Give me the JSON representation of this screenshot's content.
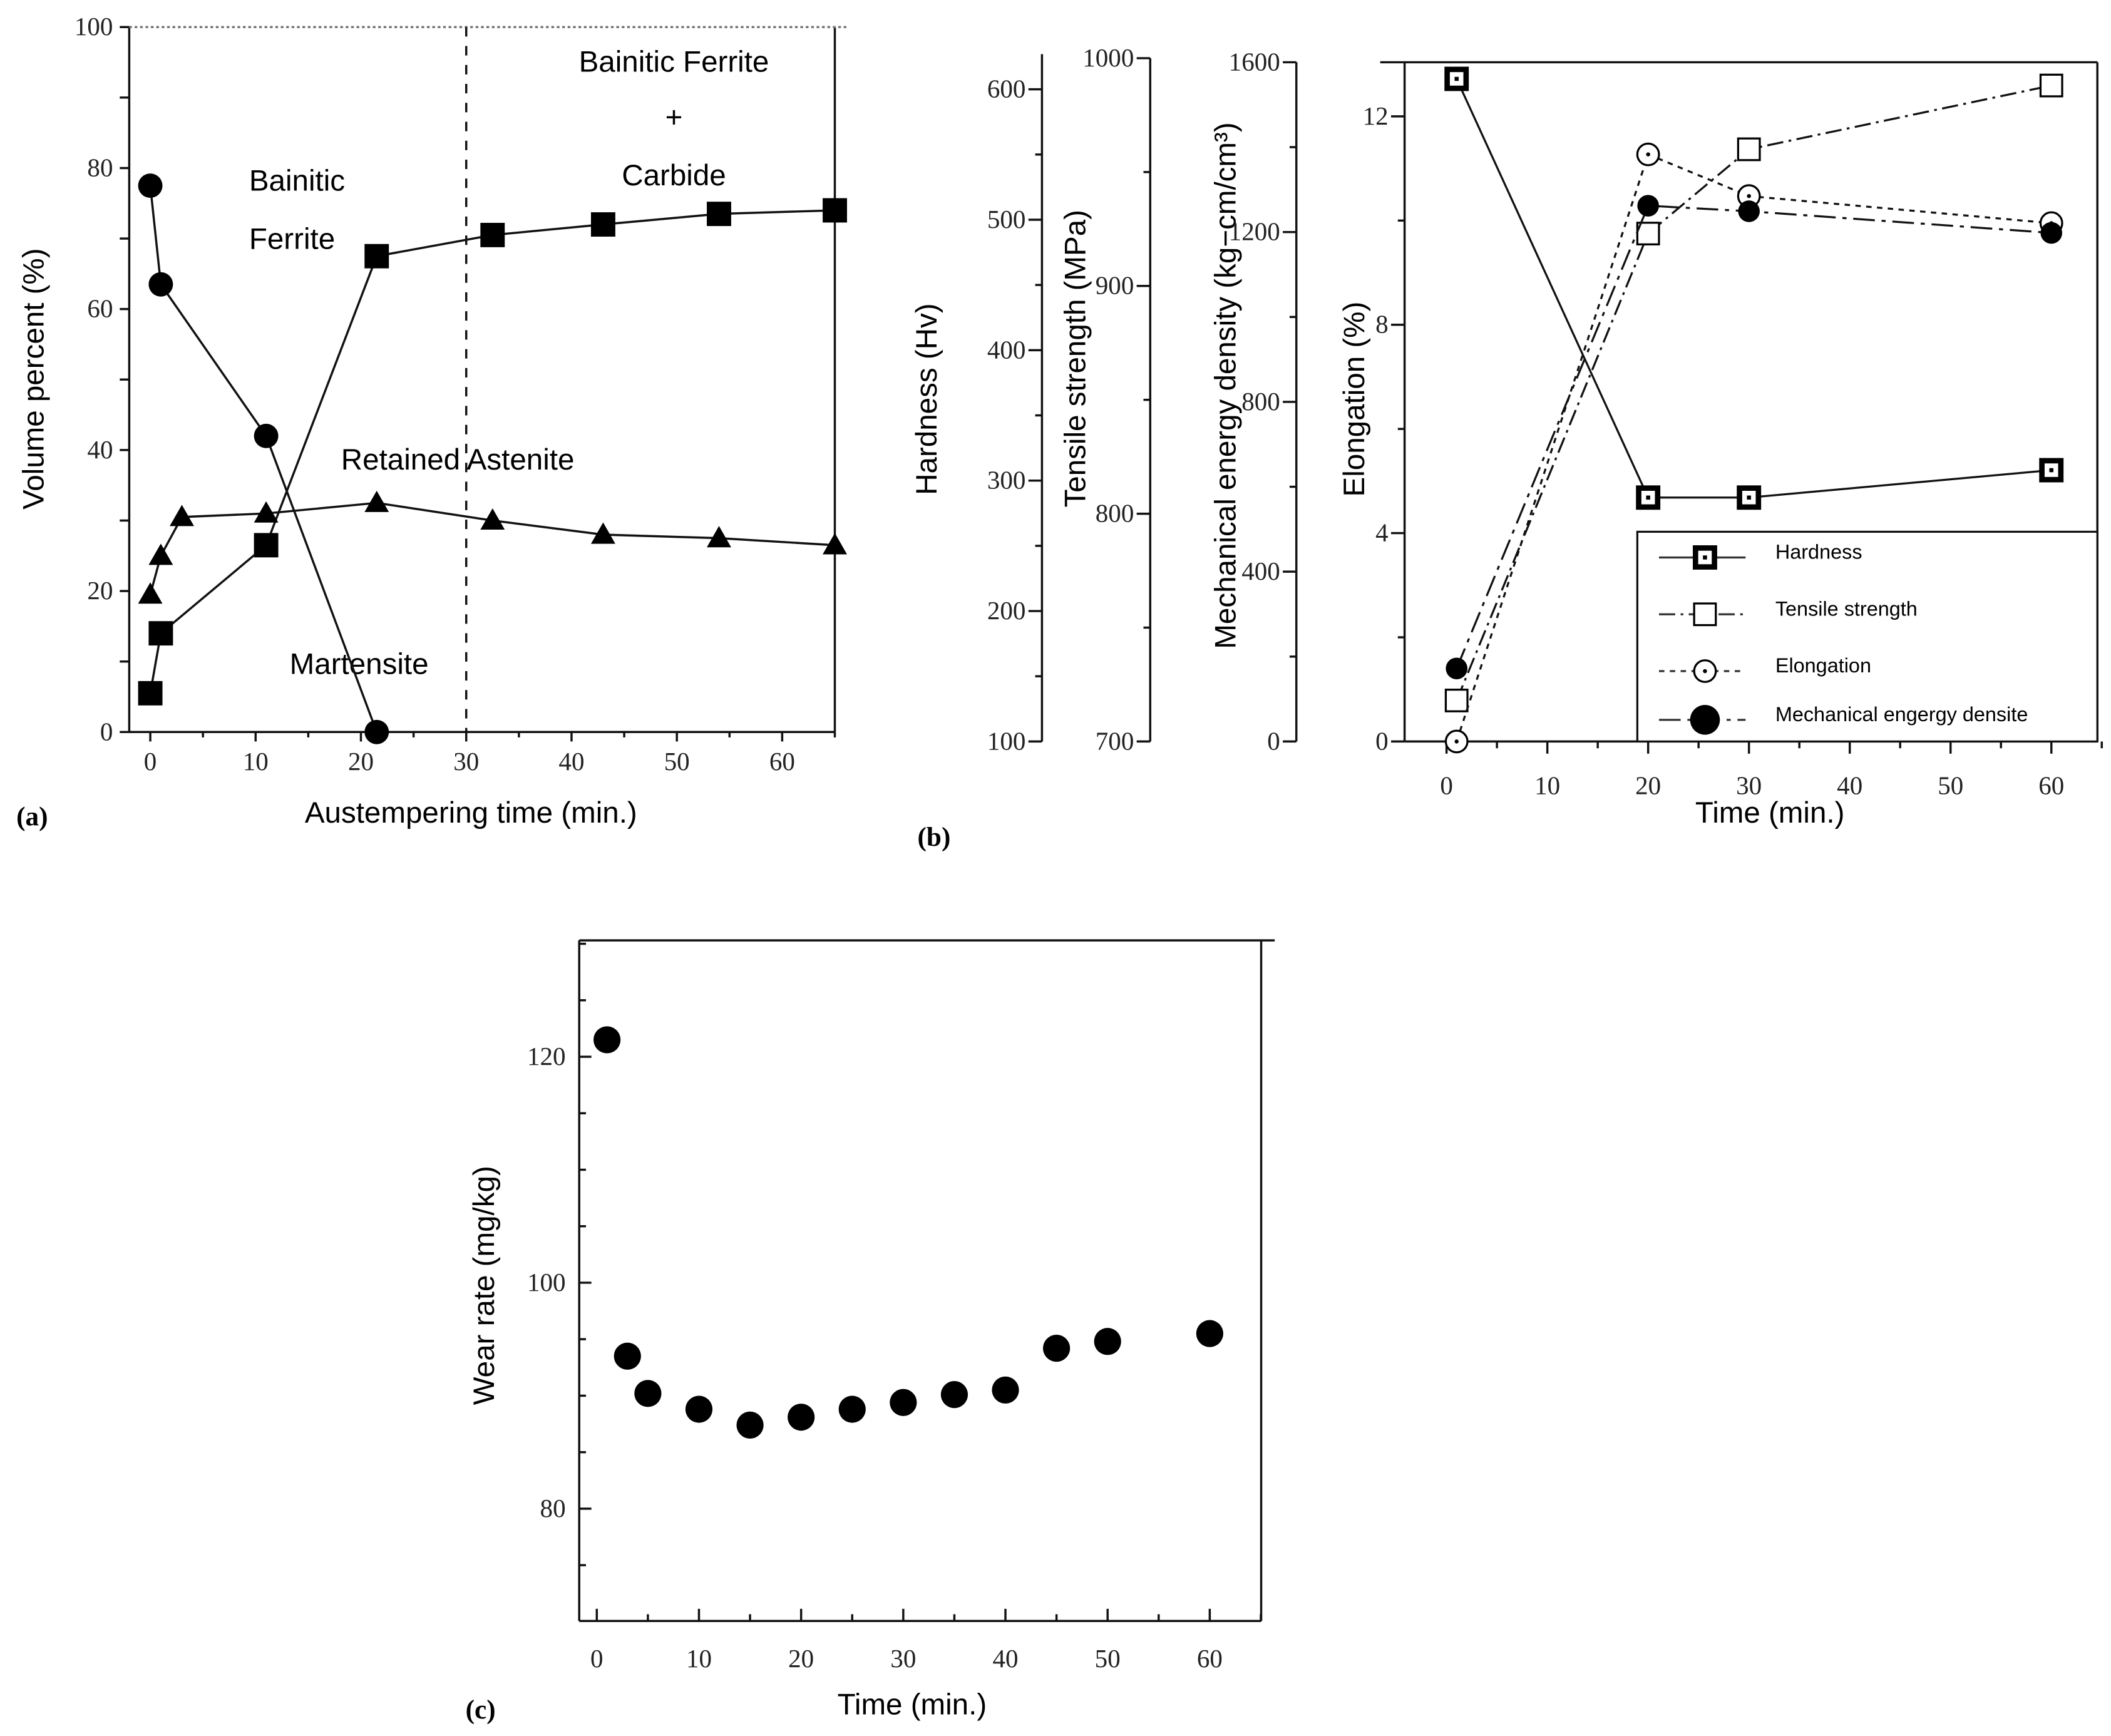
{
  "chart_data": [
    {
      "panel": "(a)",
      "type": "line",
      "xlabel": "Austempering time (min.)",
      "ylabel": "Volume percent (%)",
      "xlim": [
        -2,
        65
      ],
      "ylim": [
        0,
        100
      ],
      "xticks": [
        0,
        10,
        20,
        30,
        40,
        50,
        60
      ],
      "yticks": [
        0,
        20,
        40,
        60,
        80,
        100
      ],
      "vline": 30,
      "annotations": [
        "Bainitic",
        "Ferrite",
        "Bainitic Ferrite",
        "+",
        "Carbide",
        "Retained Astenite",
        "Martensite"
      ],
      "series": [
        {
          "name": "Martensite",
          "marker": "circle",
          "x": [
            0,
            1,
            11,
            21.5
          ],
          "y": [
            77.5,
            63.5,
            42,
            0
          ]
        },
        {
          "name": "Bainitic Ferrite",
          "marker": "square",
          "x": [
            0,
            1,
            11,
            21.5,
            32.5,
            43,
            54,
            65
          ],
          "y": [
            5.5,
            14,
            26.5,
            67.5,
            70.5,
            72,
            73.5,
            74
          ]
        },
        {
          "name": "Retained Astenite",
          "marker": "triangle",
          "x": [
            0,
            1,
            3,
            11,
            21.5,
            32.5,
            43,
            54,
            65
          ],
          "y": [
            19.5,
            25,
            30.5,
            31,
            32.5,
            30,
            28,
            27.5,
            26.5
          ]
        }
      ]
    },
    {
      "panel": "(b)",
      "type": "line",
      "xlabel": "Time (min.)",
      "xlim": [
        -4,
        65
      ],
      "xticks": [
        0,
        10,
        20,
        30,
        40,
        50,
        60
      ],
      "axes": [
        {
          "id": "hardness",
          "label": "Hardness (Hv)",
          "range": [
            100,
            627
          ],
          "ticks": [
            100,
            200,
            300,
            400,
            500,
            600
          ]
        },
        {
          "id": "tensile",
          "label": "Tensile strength (MPa)",
          "range": [
            700,
            1000
          ],
          "ticks": [
            700,
            800,
            900,
            1000
          ]
        },
        {
          "id": "energy",
          "label": "Mechanical energy density (kg−cm/cm³)",
          "range": [
            0,
            1600
          ],
          "ticks": [
            0,
            400,
            800,
            1200,
            1600
          ]
        },
        {
          "id": "elongation",
          "label": "Elongation (%)",
          "range": [
            0,
            13.04
          ],
          "ticks": [
            0,
            4,
            8,
            12
          ]
        }
      ],
      "legend_position": "bottom-right",
      "series": [
        {
          "name": "Hardness",
          "axis": "hardness",
          "marker": "bold-square",
          "dash": "solid",
          "x": [
            1,
            20,
            30,
            60
          ],
          "y": [
            608,
            287,
            287,
            308
          ]
        },
        {
          "name": "Tensile strength",
          "axis": "tensile",
          "marker": "open-square",
          "dash": "dash-dot",
          "x": [
            1,
            20,
            30,
            60
          ],
          "y": [
            718,
            923,
            960,
            988
          ]
        },
        {
          "name": "Elongation",
          "axis": "elongation",
          "marker": "open-circle",
          "dash": "dotted",
          "x": [
            1,
            20,
            30,
            60
          ],
          "y": [
            0,
            11.27,
            10.47,
            9.95
          ]
        },
        {
          "name": "Mechanical engergy densite",
          "axis": "energy",
          "marker": "filled-circle",
          "dash": "long-dash-dot",
          "x": [
            1,
            20,
            30,
            60
          ],
          "y": [
            172,
            1262,
            1249,
            1198
          ]
        }
      ]
    },
    {
      "panel": "(c)",
      "type": "scatter",
      "xlabel": "Time (min.)",
      "ylabel": "Wear rate (mg/kg)",
      "xlim": [
        -1.7,
        65
      ],
      "ylim": [
        70,
        130.3
      ],
      "xticks": [
        0,
        10,
        20,
        30,
        40,
        50,
        60
      ],
      "yticks": [
        80,
        100,
        120
      ],
      "series": [
        {
          "name": "Wear rate",
          "marker": "filled-circle",
          "x": [
            1,
            3,
            5,
            10,
            15,
            20,
            25,
            30,
            35,
            40,
            45,
            50,
            60
          ],
          "y": [
            121.5,
            93.5,
            90.2,
            88.8,
            87.4,
            88.1,
            88.8,
            89.4,
            90.1,
            90.5,
            94.2,
            94.8,
            95.5
          ]
        }
      ]
    }
  ]
}
